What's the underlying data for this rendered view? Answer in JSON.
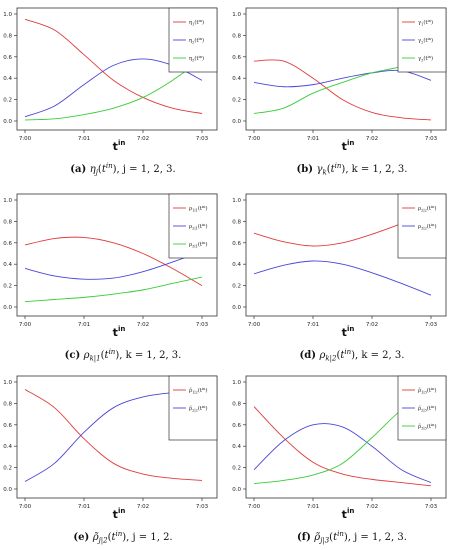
{
  "chart_data": [
    {
      "id": "a",
      "type": "line",
      "x_ticks": [
        "7:00",
        "7:01",
        "7:02",
        "7:03"
      ],
      "y_ticks": [
        "0.0",
        "0.2",
        "0.4",
        "0.6",
        "0.8",
        "1.0"
      ],
      "ylim": [
        0,
        1
      ],
      "xlim": [
        0,
        3
      ],
      "xlabel": {
        "main": "t",
        "sup": "in"
      },
      "legend_position": "top-right",
      "series": [
        {
          "name": {
            "base": "η",
            "sub": "1",
            "arg": "in"
          },
          "color": "#e03c3c",
          "x": [
            0,
            0.5,
            1.0,
            1.5,
            2.0,
            2.5,
            3.0
          ],
          "values": [
            0.95,
            0.85,
            0.62,
            0.38,
            0.22,
            0.12,
            0.07
          ]
        },
        {
          "name": {
            "base": "η",
            "sub": "2",
            "arg": "in"
          },
          "color": "#4b46d8",
          "x": [
            0,
            0.5,
            1.0,
            1.5,
            2.0,
            2.5,
            3.0
          ],
          "values": [
            0.04,
            0.14,
            0.34,
            0.52,
            0.58,
            0.52,
            0.38
          ]
        },
        {
          "name": {
            "base": "η",
            "sub": "3",
            "arg": "in"
          },
          "color": "#39cc39",
          "x": [
            0,
            0.5,
            1.0,
            1.5,
            2.0,
            2.5,
            3.0
          ],
          "values": [
            0.01,
            0.02,
            0.06,
            0.12,
            0.22,
            0.38,
            0.58
          ]
        }
      ],
      "caption": {
        "letter": "(a)",
        "func": "η",
        "sub": "j",
        "arg": "in",
        "rest": ", j = 1, 2, 3."
      }
    },
    {
      "id": "b",
      "type": "line",
      "x_ticks": [
        "7:00",
        "7:01",
        "7:02",
        "7:03"
      ],
      "y_ticks": [
        "0.0",
        "0.2",
        "0.4",
        "0.6",
        "0.8",
        "1.0"
      ],
      "ylim": [
        0,
        1
      ],
      "xlim": [
        0,
        3
      ],
      "xlabel": {
        "main": "t",
        "sup": "in"
      },
      "legend_position": "top-right",
      "series": [
        {
          "name": {
            "base": "γ",
            "sub": "1",
            "arg": "in"
          },
          "color": "#e03c3c",
          "x": [
            0,
            0.5,
            1.0,
            1.5,
            2.0,
            2.5,
            3.0
          ],
          "values": [
            0.56,
            0.56,
            0.4,
            0.2,
            0.08,
            0.03,
            0.01
          ]
        },
        {
          "name": {
            "base": "γ",
            "sub": "2",
            "arg": "in"
          },
          "color": "#4b46d8",
          "x": [
            0,
            0.5,
            1.0,
            1.5,
            2.0,
            2.5,
            3.0
          ],
          "values": [
            0.36,
            0.32,
            0.34,
            0.4,
            0.45,
            0.47,
            0.38
          ]
        },
        {
          "name": {
            "base": "γ",
            "sub": "3",
            "arg": "in"
          },
          "color": "#39cc39",
          "x": [
            0,
            0.5,
            1.0,
            1.5,
            2.0,
            2.5,
            3.0
          ],
          "values": [
            0.07,
            0.12,
            0.26,
            0.36,
            0.45,
            0.51,
            0.6
          ]
        }
      ],
      "caption": {
        "letter": "(b)",
        "func": "γ",
        "sub": "k",
        "arg": "in",
        "rest": ", k = 1, 2, 3."
      }
    },
    {
      "id": "c",
      "type": "line",
      "x_ticks": [
        "7:00",
        "7:01",
        "7:02",
        "7:03"
      ],
      "y_ticks": [
        "0.0",
        "0.2",
        "0.4",
        "0.6",
        "0.8",
        "1.0"
      ],
      "ylim": [
        0,
        1
      ],
      "xlim": [
        0,
        3
      ],
      "xlabel": {
        "main": "t",
        "sup": "in"
      },
      "legend_position": "top-right",
      "series": [
        {
          "name": {
            "base": "ρ",
            "sub": "1|1",
            "arg": "in"
          },
          "color": "#e03c3c",
          "x": [
            0,
            0.5,
            1.0,
            1.5,
            2.0,
            2.5,
            3.0
          ],
          "values": [
            0.58,
            0.64,
            0.65,
            0.6,
            0.5,
            0.36,
            0.2
          ]
        },
        {
          "name": {
            "base": "ρ",
            "sub": "2|1",
            "arg": "in"
          },
          "color": "#4b46d8",
          "x": [
            0,
            0.5,
            1.0,
            1.5,
            2.0,
            2.5,
            3.0
          ],
          "values": [
            0.36,
            0.29,
            0.26,
            0.27,
            0.33,
            0.42,
            0.52
          ]
        },
        {
          "name": {
            "base": "ρ",
            "sub": "3|1",
            "arg": "in"
          },
          "color": "#39cc39",
          "x": [
            0,
            0.5,
            1.0,
            1.5,
            2.0,
            2.5,
            3.0
          ],
          "values": [
            0.05,
            0.07,
            0.09,
            0.12,
            0.16,
            0.22,
            0.28
          ]
        }
      ],
      "caption": {
        "letter": "(c)",
        "func": "ρ",
        "sub": "k|1",
        "arg": "in",
        "rest": ", k = 1, 2, 3."
      }
    },
    {
      "id": "d",
      "type": "line",
      "x_ticks": [
        "7:00",
        "7:01",
        "7:02",
        "7:03"
      ],
      "y_ticks": [
        "0.0",
        "0.2",
        "0.4",
        "0.6",
        "0.8",
        "1.0"
      ],
      "ylim": [
        0,
        1
      ],
      "xlim": [
        0,
        3
      ],
      "xlabel": {
        "main": "t",
        "sup": "in"
      },
      "legend_position": "top-right",
      "series": [
        {
          "name": {
            "base": "ρ",
            "sub": "2|2",
            "arg": "in"
          },
          "color": "#e03c3c",
          "x": [
            0,
            0.5,
            1.0,
            1.5,
            2.0,
            2.5,
            3.0
          ],
          "values": [
            0.69,
            0.61,
            0.57,
            0.6,
            0.68,
            0.78,
            0.89
          ]
        },
        {
          "name": {
            "base": "ρ",
            "sub": "3|2",
            "arg": "in"
          },
          "color": "#4b46d8",
          "x": [
            0,
            0.5,
            1.0,
            1.5,
            2.0,
            2.5,
            3.0
          ],
          "values": [
            0.31,
            0.39,
            0.43,
            0.4,
            0.32,
            0.22,
            0.11
          ]
        }
      ],
      "caption": {
        "letter": "(d)",
        "func": "ρ",
        "sub": "k|2",
        "arg": "in",
        "rest": ", k = 2, 3."
      }
    },
    {
      "id": "e",
      "type": "line",
      "x_ticks": [
        "7:00",
        "7:01",
        "7:02",
        "7:03"
      ],
      "y_ticks": [
        "0.0",
        "0.2",
        "0.4",
        "0.6",
        "0.8",
        "1.0"
      ],
      "ylim": [
        0,
        1
      ],
      "xlim": [
        0,
        3
      ],
      "xlabel": {
        "main": "t",
        "sup": "in"
      },
      "legend_position": "top-right",
      "series": [
        {
          "name": {
            "base": "ρ̃",
            "sub": "1|2",
            "arg": "in"
          },
          "color": "#e03c3c",
          "x": [
            0,
            0.5,
            1.0,
            1.5,
            2.0,
            2.5,
            3.0
          ],
          "values": [
            0.93,
            0.76,
            0.47,
            0.24,
            0.14,
            0.1,
            0.08
          ]
        },
        {
          "name": {
            "base": "ρ̃",
            "sub": "2|2",
            "arg": "in"
          },
          "color": "#4b46d8",
          "x": [
            0,
            0.5,
            1.0,
            1.5,
            2.0,
            2.5,
            3.0
          ],
          "values": [
            0.07,
            0.24,
            0.53,
            0.76,
            0.86,
            0.9,
            0.92
          ]
        }
      ],
      "caption": {
        "letter": "(e)",
        "func": "ρ̃",
        "sub": "j|2",
        "arg": "in",
        "rest": ", j = 1, 2."
      }
    },
    {
      "id": "f",
      "type": "line",
      "x_ticks": [
        "7:00",
        "7:01",
        "7:02",
        "7:03"
      ],
      "y_ticks": [
        "0.0",
        "0.2",
        "0.4",
        "0.6",
        "0.8",
        "1.0"
      ],
      "ylim": [
        0,
        1
      ],
      "xlim": [
        0,
        3
      ],
      "xlabel": {
        "main": "t",
        "sup": "in"
      },
      "legend_position": "top-right",
      "series": [
        {
          "name": {
            "base": "ρ̃",
            "sub": "1|3",
            "arg": "in"
          },
          "color": "#e03c3c",
          "x": [
            0,
            0.5,
            1.0,
            1.5,
            2.0,
            2.5,
            3.0
          ],
          "values": [
            0.77,
            0.48,
            0.25,
            0.14,
            0.09,
            0.06,
            0.03
          ]
        },
        {
          "name": {
            "base": "ρ̃",
            "sub": "2|3",
            "arg": "in"
          },
          "color": "#4b46d8",
          "x": [
            0,
            0.5,
            1.0,
            1.5,
            2.0,
            2.5,
            3.0
          ],
          "values": [
            0.18,
            0.45,
            0.6,
            0.58,
            0.4,
            0.18,
            0.06
          ]
        },
        {
          "name": {
            "base": "ρ̃",
            "sub": "3|3",
            "arg": "in"
          },
          "color": "#39cc39",
          "x": [
            0,
            0.5,
            1.0,
            1.5,
            2.0,
            2.5,
            3.0
          ],
          "values": [
            0.05,
            0.08,
            0.13,
            0.24,
            0.48,
            0.74,
            0.92
          ]
        }
      ],
      "caption": {
        "letter": "(f)",
        "func": "ρ̃",
        "sub": "j|3",
        "arg": "in",
        "rest": ", j = 1, 2, 3."
      }
    }
  ]
}
